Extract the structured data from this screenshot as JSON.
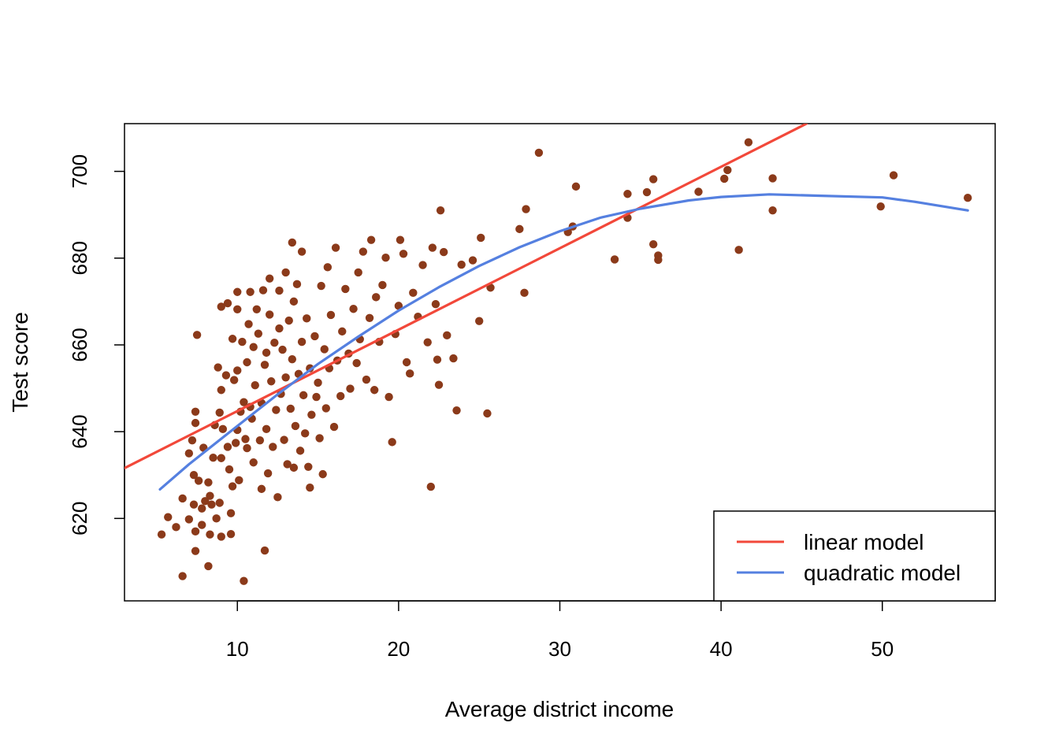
{
  "chart_data": {
    "type": "scatter",
    "title": "",
    "xlabel": "Average district income",
    "ylabel": "Test score",
    "xlim": [
      3.0,
      57.0
    ],
    "ylim": [
      601.0,
      711.0
    ],
    "x_ticks": [
      10,
      20,
      30,
      40,
      50
    ],
    "y_ticks": [
      620,
      640,
      660,
      680,
      700
    ],
    "x_tick_labels": [
      "10",
      "20",
      "30",
      "40",
      "50"
    ],
    "y_tick_labels": [
      "620",
      "640",
      "660",
      "680",
      "700"
    ],
    "grid": false,
    "legend_position": "bottom-right",
    "point_color": "#8B3A1A",
    "series": [
      {
        "name": "",
        "kind": "points",
        "color": "#8B3A1A",
        "points": [
          [
            5.3,
            616.3
          ],
          [
            5.7,
            620.3
          ],
          [
            6.2,
            618.0
          ],
          [
            6.6,
            606.7
          ],
          [
            6.6,
            624.6
          ],
          [
            7.0,
            619.8
          ],
          [
            7.0,
            635.0
          ],
          [
            7.2,
            638.0
          ],
          [
            7.3,
            623.2
          ],
          [
            7.4,
            612.5
          ],
          [
            7.4,
            617.0
          ],
          [
            7.3,
            630.0
          ],
          [
            7.4,
            642.0
          ],
          [
            7.4,
            644.6
          ],
          [
            7.5,
            662.3
          ],
          [
            7.6,
            628.7
          ],
          [
            7.8,
            618.5
          ],
          [
            7.8,
            622.3
          ],
          [
            7.9,
            636.3
          ],
          [
            8.0,
            624.0
          ],
          [
            8.2,
            609.0
          ],
          [
            8.2,
            628.3
          ],
          [
            8.3,
            616.3
          ],
          [
            8.3,
            625.2
          ],
          [
            8.4,
            623.2
          ],
          [
            8.5,
            634.0
          ],
          [
            8.6,
            641.5
          ],
          [
            8.7,
            620.0
          ],
          [
            8.8,
            654.8
          ],
          [
            8.9,
            623.6
          ],
          [
            8.9,
            644.4
          ],
          [
            9.0,
            615.8
          ],
          [
            9.0,
            633.9
          ],
          [
            9.0,
            649.6
          ],
          [
            9.0,
            668.8
          ],
          [
            9.1,
            640.6
          ],
          [
            9.3,
            653.0
          ],
          [
            9.4,
            669.6
          ],
          [
            9.4,
            636.5
          ],
          [
            9.5,
            631.3
          ],
          [
            9.6,
            616.4
          ],
          [
            9.6,
            621.2
          ],
          [
            9.7,
            627.4
          ],
          [
            9.7,
            661.4
          ],
          [
            9.8,
            651.9
          ],
          [
            9.9,
            637.4
          ],
          [
            10.0,
            668.2
          ],
          [
            10.0,
            672.2
          ],
          [
            10.0,
            654.1
          ],
          [
            10.0,
            640.4
          ],
          [
            10.1,
            628.8
          ],
          [
            10.2,
            644.6
          ],
          [
            10.3,
            660.7
          ],
          [
            10.4,
            605.6
          ],
          [
            10.4,
            646.8
          ],
          [
            10.5,
            638.3
          ],
          [
            10.6,
            656.0
          ],
          [
            10.6,
            636.2
          ],
          [
            10.7,
            664.8
          ],
          [
            10.8,
            645.7
          ],
          [
            10.8,
            672.2
          ],
          [
            10.9,
            643.0
          ],
          [
            11.0,
            659.5
          ],
          [
            11.0,
            632.9
          ],
          [
            11.1,
            650.7
          ],
          [
            11.2,
            668.2
          ],
          [
            11.3,
            662.6
          ],
          [
            11.4,
            638.0
          ],
          [
            11.5,
            646.6
          ],
          [
            11.5,
            626.8
          ],
          [
            11.6,
            672.6
          ],
          [
            11.7,
            655.4
          ],
          [
            11.7,
            612.6
          ],
          [
            11.8,
            658.2
          ],
          [
            11.8,
            640.6
          ],
          [
            11.9,
            630.4
          ],
          [
            12.0,
            667.0
          ],
          [
            12.0,
            675.3
          ],
          [
            12.1,
            651.6
          ],
          [
            12.2,
            636.5
          ],
          [
            12.3,
            660.5
          ],
          [
            12.4,
            645.0
          ],
          [
            12.5,
            624.9
          ],
          [
            12.6,
            663.8
          ],
          [
            12.6,
            672.5
          ],
          [
            12.7,
            648.7
          ],
          [
            12.8,
            658.9
          ],
          [
            12.9,
            638.1
          ],
          [
            13.0,
            676.7
          ],
          [
            13.0,
            652.5
          ],
          [
            13.1,
            632.5
          ],
          [
            13.2,
            665.6
          ],
          [
            13.3,
            645.3
          ],
          [
            13.4,
            656.7
          ],
          [
            13.4,
            683.6
          ],
          [
            13.5,
            631.7
          ],
          [
            13.5,
            670.0
          ],
          [
            13.6,
            641.3
          ],
          [
            13.7,
            674.0
          ],
          [
            13.8,
            653.3
          ],
          [
            13.9,
            635.6
          ],
          [
            14.0,
            681.5
          ],
          [
            14.0,
            660.7
          ],
          [
            14.1,
            648.4
          ],
          [
            14.2,
            639.6
          ],
          [
            14.3,
            666.1
          ],
          [
            14.4,
            631.9
          ],
          [
            14.5,
            654.6
          ],
          [
            14.5,
            627.1
          ],
          [
            14.6,
            643.9
          ],
          [
            14.8,
            662.0
          ],
          [
            14.9,
            648.0
          ],
          [
            15.0,
            651.3
          ],
          [
            15.1,
            638.5
          ],
          [
            15.2,
            673.6
          ],
          [
            15.3,
            630.2
          ],
          [
            15.4,
            659.0
          ],
          [
            15.5,
            645.4
          ],
          [
            15.6,
            677.9
          ],
          [
            15.7,
            654.6
          ],
          [
            15.8,
            666.9
          ],
          [
            16.0,
            641.1
          ],
          [
            16.1,
            682.4
          ],
          [
            16.2,
            656.4
          ],
          [
            16.4,
            648.2
          ],
          [
            16.5,
            663.1
          ],
          [
            16.7,
            672.9
          ],
          [
            16.9,
            658.0
          ],
          [
            17.0,
            649.9
          ],
          [
            17.2,
            668.3
          ],
          [
            17.4,
            655.8
          ],
          [
            17.5,
            676.7
          ],
          [
            17.6,
            661.3
          ],
          [
            17.8,
            681.5
          ],
          [
            18.0,
            652.0
          ],
          [
            18.2,
            666.2
          ],
          [
            18.3,
            684.2
          ],
          [
            18.5,
            649.6
          ],
          [
            18.6,
            671.0
          ],
          [
            18.8,
            660.7
          ],
          [
            19.0,
            673.8
          ],
          [
            19.2,
            680.1
          ],
          [
            19.4,
            648.0
          ],
          [
            19.6,
            637.6
          ],
          [
            19.8,
            662.5
          ],
          [
            20.0,
            669.0
          ],
          [
            20.1,
            684.2
          ],
          [
            20.3,
            681.0
          ],
          [
            20.5,
            656.0
          ],
          [
            20.7,
            653.4
          ],
          [
            20.9,
            672.0
          ],
          [
            21.2,
            666.5
          ],
          [
            21.5,
            678.4
          ],
          [
            21.8,
            660.6
          ],
          [
            22.0,
            627.3
          ],
          [
            22.1,
            682.4
          ],
          [
            22.3,
            669.4
          ],
          [
            22.4,
            656.6
          ],
          [
            22.5,
            650.8
          ],
          [
            22.6,
            691.0
          ],
          [
            22.8,
            681.4
          ],
          [
            23.0,
            662.2
          ],
          [
            23.4,
            656.9
          ],
          [
            23.6,
            644.9
          ],
          [
            23.9,
            678.5
          ],
          [
            24.6,
            679.5
          ],
          [
            25.0,
            665.5
          ],
          [
            25.1,
            684.7
          ],
          [
            25.5,
            644.2
          ],
          [
            25.7,
            673.2
          ],
          [
            27.5,
            686.7
          ],
          [
            27.8,
            672.0
          ],
          [
            27.9,
            691.3
          ],
          [
            28.7,
            704.3
          ],
          [
            30.5,
            686.0
          ],
          [
            30.8,
            687.3
          ],
          [
            31.0,
            696.5
          ],
          [
            33.4,
            679.7
          ],
          [
            34.2,
            694.8
          ],
          [
            34.2,
            689.3
          ],
          [
            35.4,
            695.2
          ],
          [
            35.8,
            698.2
          ],
          [
            35.8,
            683.2
          ],
          [
            36.1,
            679.6
          ],
          [
            36.1,
            680.6
          ],
          [
            38.6,
            695.3
          ],
          [
            40.2,
            698.3
          ],
          [
            40.4,
            700.3
          ],
          [
            41.1,
            681.9
          ],
          [
            41.7,
            706.7
          ],
          [
            43.2,
            691.0
          ],
          [
            43.2,
            698.4
          ],
          [
            49.9,
            691.9
          ],
          [
            50.7,
            699.1
          ],
          [
            55.3,
            693.9
          ]
        ]
      },
      {
        "name": "linear model",
        "kind": "line",
        "color": "#F2483A",
        "points": [
          [
            3.0,
            631.6
          ],
          [
            45.3,
            711.0
          ]
        ]
      },
      {
        "name": "quadratic model",
        "kind": "line",
        "color": "#5580E0",
        "points": [
          [
            5.2,
            626.7
          ],
          [
            7.0,
            632.5
          ],
          [
            10.0,
            641.3
          ],
          [
            12.5,
            648.6
          ],
          [
            15.0,
            655.6
          ],
          [
            17.5,
            661.9
          ],
          [
            20.0,
            667.9
          ],
          [
            22.5,
            673.3
          ],
          [
            25.0,
            678.2
          ],
          [
            27.5,
            682.5
          ],
          [
            30.0,
            686.2
          ],
          [
            32.5,
            689.3
          ],
          [
            35.0,
            691.4
          ],
          [
            38.0,
            693.3
          ],
          [
            40.0,
            694.1
          ],
          [
            43.0,
            694.7
          ],
          [
            46.0,
            694.4
          ],
          [
            50.0,
            694.0
          ],
          [
            52.0,
            693.0
          ],
          [
            55.3,
            691.0
          ]
        ]
      }
    ],
    "legend": {
      "entries": [
        {
          "label": "linear model",
          "color": "#F2483A"
        },
        {
          "label": "quadratic model",
          "color": "#5580E0"
        }
      ]
    }
  }
}
